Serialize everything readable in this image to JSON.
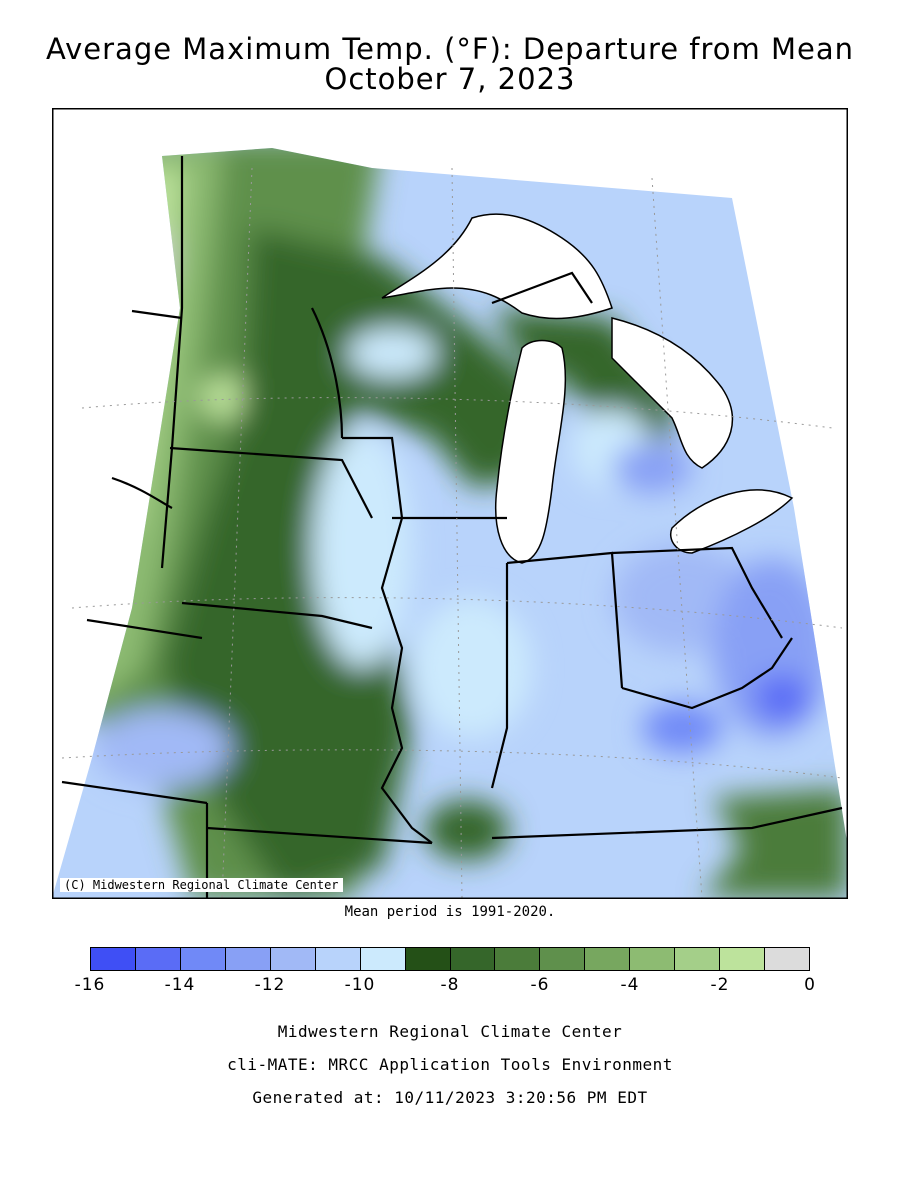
{
  "title_line1": "Average Maximum Temp. (°F): Departure from Mean",
  "title_line2": "October 7, 2023",
  "credit": "(C) Midwestern Regional Climate Center",
  "mean_period": "Mean period is 1991-2020.",
  "legend": {
    "colors": [
      "#3f4ff5",
      "#5a6cf6",
      "#7089f7",
      "#88a0f5",
      "#a1b9f6",
      "#b8d3fb",
      "#cceafd",
      "#245017",
      "#35662a",
      "#4b7c3a",
      "#5f904c",
      "#77a75f",
      "#8dbb72",
      "#a4cf89",
      "#bde39c",
      "#dcdcdc"
    ],
    "labels": [
      "-16",
      "-14",
      "-12",
      "-10",
      "-8",
      "-6",
      "-4",
      "-2",
      "0"
    ]
  },
  "footer": {
    "line1": "Midwestern Regional Climate Center",
    "line2": "cli-MATE: MRCC Application Tools Environment",
    "line3": "Generated at: 10/11/2023 3:20:56 PM EDT"
  },
  "map_colors": {
    "lake": "#ffffff",
    "outline": "#000000",
    "dark_green": "#35662a",
    "mid_green": "#5f904c",
    "light_green": "#8dbb72",
    "pale_green": "#bde39c",
    "gray": "#dcdcdc",
    "light_blue": "#cceafd",
    "blue1": "#b8d3fb",
    "blue2": "#a1b9f6",
    "blue3": "#88a0f5",
    "blue4": "#7089f7",
    "blue5": "#5a6cf6"
  }
}
